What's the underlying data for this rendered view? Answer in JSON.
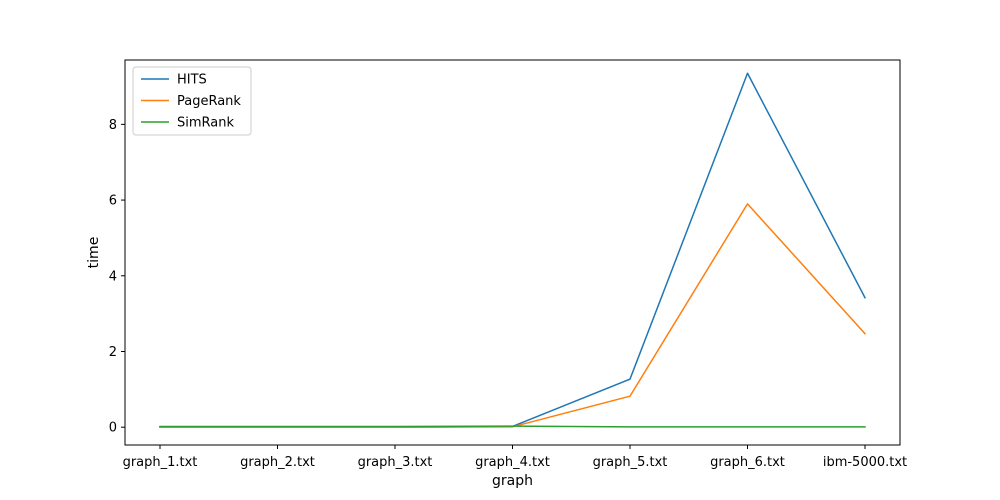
{
  "chart_data": {
    "type": "line",
    "xlabel": "graph",
    "ylabel": "time",
    "categories": [
      "graph_1.txt",
      "graph_2.txt",
      "graph_3.txt",
      "graph_4.txt",
      "graph_5.txt",
      "graph_6.txt",
      "ibm-5000.txt"
    ],
    "ylim": [
      -0.47,
      9.7
    ],
    "yticks": [
      0,
      2,
      4,
      6,
      8
    ],
    "grid": false,
    "legend_position": "top-left",
    "series": [
      {
        "name": "HITS",
        "color": "#1f77b4",
        "values": [
          0.01,
          0.01,
          0.0,
          0.02,
          1.27,
          9.35,
          3.42
        ]
      },
      {
        "name": "PageRank",
        "color": "#ff7f0e",
        "values": [
          0.0,
          0.0,
          0.0,
          0.01,
          0.82,
          5.9,
          2.47
        ]
      },
      {
        "name": "SimRank",
        "color": "#2ca02c",
        "values": [
          0.02,
          0.02,
          0.02,
          0.03,
          0.01,
          0.01,
          0.01
        ]
      }
    ]
  }
}
